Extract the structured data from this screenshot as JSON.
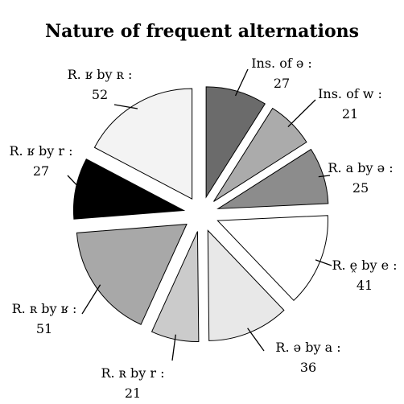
{
  "chart_data": {
    "type": "pie",
    "style": "exploded",
    "title": "Nature of frequent alternations",
    "slices": [
      {
        "label": "Ins. of ə :",
        "value": 27,
        "color": "#6b6b6b"
      },
      {
        "label": "Ins. of w :",
        "value": 21,
        "color": "#ababab"
      },
      {
        "label": "R. a by ə :",
        "value": 25,
        "color": "#8c8c8c"
      },
      {
        "label": "R. ḙ by e :",
        "value": 41,
        "color": "#ffffff"
      },
      {
        "label": "R. ə by a :",
        "value": 36,
        "color": "#e8e8e8"
      },
      {
        "label": "R. ʀ by r :",
        "value": 21,
        "color": "#cbcbcb"
      },
      {
        "label": "R. ʀ by ʁ :",
        "value": 51,
        "color": "#a8a8a8"
      },
      {
        "label": "R. ʁ by r :",
        "value": 27,
        "color": "#000000"
      },
      {
        "label": "R. ʁ by ʀ :",
        "value": 52,
        "color": "#f3f3f3"
      }
    ],
    "legend": "none",
    "grid": false
  }
}
